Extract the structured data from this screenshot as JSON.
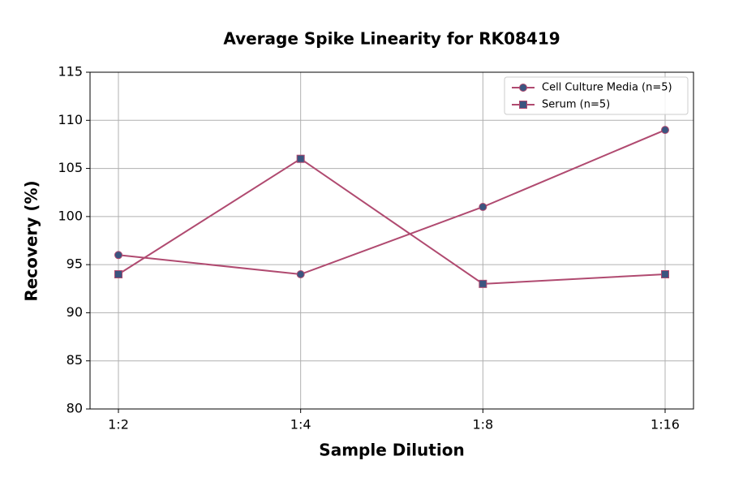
{
  "chart_data": {
    "type": "line",
    "title": "Average Spike Linearity for RK08419",
    "x_label": "Sample Dilution",
    "y_label": "Recovery (%)",
    "categories": [
      "1:2",
      "1:4",
      "1:8",
      "1:16"
    ],
    "series": [
      {
        "name": "Cell Culture Media (n=5)",
        "color": "#b04a70",
        "marker_color": "#3b5580",
        "marker": "circle",
        "values": [
          96,
          94,
          101,
          109
        ]
      },
      {
        "name": "Serum (n=5)",
        "color": "#b04a70",
        "marker_color": "#3b5580",
        "marker": "square",
        "values": [
          94,
          106,
          93,
          94
        ]
      }
    ],
    "ylim": [
      80,
      115
    ],
    "yticks": [
      80,
      85,
      90,
      95,
      100,
      105,
      110,
      115
    ],
    "grid": true,
    "legend": "upper right"
  }
}
